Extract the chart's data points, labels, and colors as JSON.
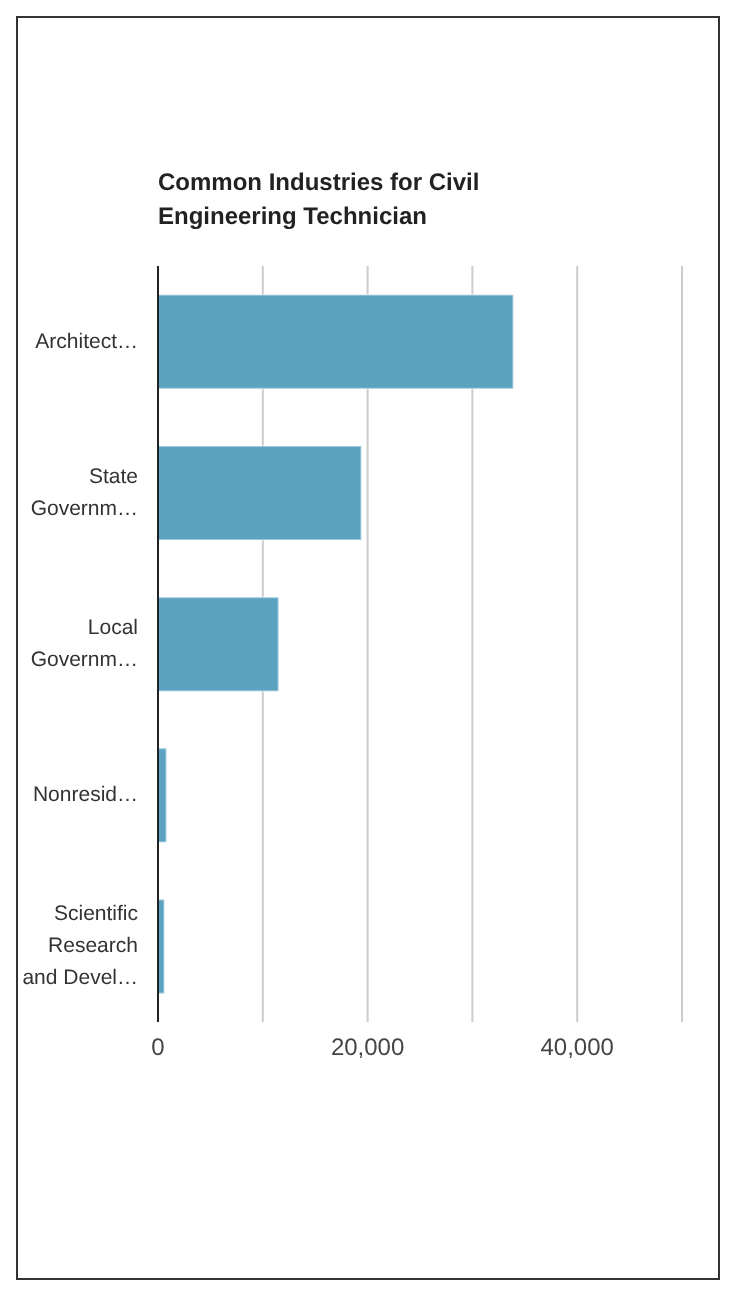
{
  "chart_data": {
    "type": "bar",
    "orientation": "horizontal",
    "title": "Common Industries for Civil Engineering Technician",
    "categories": [
      "Architect…",
      "State Governm…",
      "Local Governm…",
      "Nonresid…",
      "Scientific Research and Devel…"
    ],
    "values": [
      33900,
      19400,
      11500,
      800,
      600
    ],
    "color": "#5ba3c1",
    "xlim": [
      0,
      50000
    ],
    "xticks": [
      0,
      {
        "value": 10000,
        "label": null
      },
      {
        "value": 20000,
        "label": "20,000"
      },
      {
        "value": 30000,
        "label": null
      },
      {
        "value": 40000,
        "label": "40,000"
      }
    ],
    "grid": "x"
  }
}
